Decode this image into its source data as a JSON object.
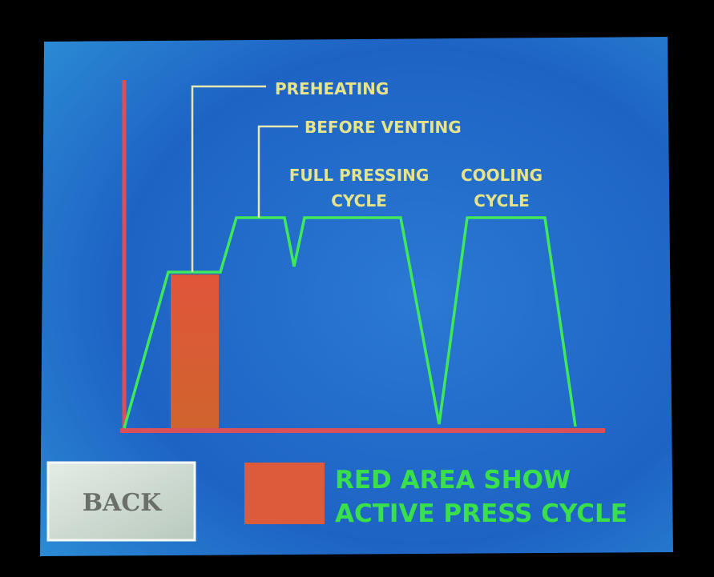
{
  "screen": {
    "labels": {
      "preheating": "PREHEATING",
      "before_venting": "BEFORE VENTING",
      "full_pressing_cycle": [
        "FULL PRESSING",
        "CYCLE"
      ],
      "cooling_cycle": [
        "COOLING",
        "CYCLE"
      ]
    },
    "back_button": "BACK",
    "legend": [
      "RED AREA SHOW",
      "ACTIVE PRESS CYCLE"
    ]
  }
}
